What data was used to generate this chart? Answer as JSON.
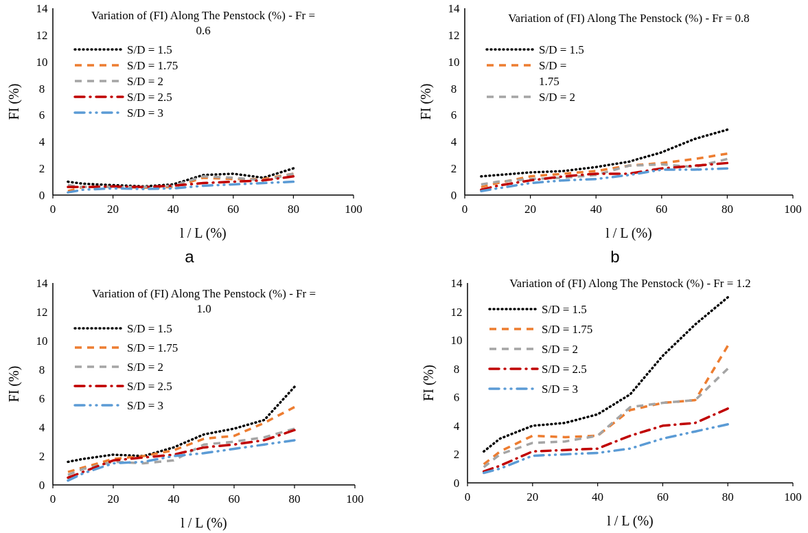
{
  "chart_data": [
    {
      "type": "line",
      "title": "Variation of (FI) Along The Penstock (%) - Fr = 0.6",
      "xlabel": "l / L (%)",
      "ylabel": "FI (%)",
      "x": [
        5,
        10,
        20,
        30,
        40,
        50,
        60,
        70,
        80
      ],
      "xlim": [
        0,
        100
      ],
      "xticks": [
        0,
        20,
        40,
        60,
        80,
        100
      ],
      "ylim": [
        0,
        14
      ],
      "yticks": [
        0,
        2,
        4,
        6,
        8,
        10,
        12,
        14
      ],
      "grid": false,
      "legend": "top left",
      "annotations": [
        "a"
      ],
      "series": [
        {
          "name": "S/D = 1.5",
          "color": "#000000",
          "line_style": "dotted",
          "values": [
            1.0,
            0.85,
            0.75,
            0.65,
            0.8,
            1.5,
            1.6,
            1.3,
            2.0
          ]
        },
        {
          "name": "S/D = 1.75",
          "color": "#ed7d31",
          "line_style": "dashed",
          "values": [
            0.3,
            0.6,
            0.6,
            0.55,
            0.6,
            1.3,
            1.2,
            1.2,
            1.6
          ]
        },
        {
          "name": "S/D = 2",
          "color": "#a5a5a5",
          "line_style": "dashed",
          "values": [
            0.75,
            0.6,
            0.6,
            0.6,
            0.7,
            1.4,
            1.3,
            1.1,
            1.6
          ]
        },
        {
          "name": "S/D = 2.5",
          "color": "#c00000",
          "line_style": "dashdot",
          "values": [
            0.6,
            0.6,
            0.65,
            0.6,
            0.7,
            0.9,
            1.0,
            1.1,
            1.4
          ]
        },
        {
          "name": "S/D = 3",
          "color": "#5b9bd5",
          "line_style": "dashdotdot",
          "values": [
            0.2,
            0.4,
            0.5,
            0.45,
            0.5,
            0.7,
            0.8,
            0.9,
            1.0
          ]
        }
      ]
    },
    {
      "type": "line",
      "title": "Variation of (FI) Along The Penstock (%) - Fr = 0.8",
      "xlabel": "l / L (%)",
      "ylabel": "FI (%)",
      "x": [
        5,
        10,
        20,
        30,
        40,
        50,
        60,
        70,
        80
      ],
      "xlim": [
        0,
        100
      ],
      "xticks": [
        0,
        20,
        40,
        60,
        80,
        100
      ],
      "ylim": [
        0,
        14
      ],
      "yticks": [
        0,
        2,
        4,
        6,
        8,
        10,
        12,
        14
      ],
      "grid": false,
      "legend": "top left",
      "annotations": [
        "b"
      ],
      "series": [
        {
          "name": "S/D = 1.5",
          "color": "#000000",
          "line_style": "dotted",
          "values": [
            1.4,
            1.5,
            1.7,
            1.8,
            2.1,
            2.5,
            3.2,
            4.2,
            4.9
          ]
        },
        {
          "name": "S/D = 1.75",
          "color": "#ed7d31",
          "line_style": "dashed",
          "values": [
            0.6,
            0.9,
            1.4,
            1.6,
            1.8,
            2.2,
            2.4,
            2.7,
            3.1
          ]
        },
        {
          "name": "S/D = 2",
          "color": "#a5a5a5",
          "line_style": "dashed",
          "values": [
            0.8,
            1.0,
            1.2,
            1.3,
            1.5,
            2.2,
            2.3,
            2.1,
            2.7
          ]
        },
        {
          "color": "#c00000",
          "line_style": "dashdot",
          "values": [
            0.4,
            0.7,
            1.1,
            1.4,
            1.6,
            1.6,
            2.0,
            2.2,
            2.4
          ]
        },
        {
          "color": "#5b9bd5",
          "line_style": "dashdotdot",
          "values": [
            0.3,
            0.5,
            0.9,
            1.1,
            1.2,
            1.5,
            1.9,
            1.9,
            2.0
          ]
        }
      ]
    },
    {
      "type": "line",
      "title": "Variation of (FI) Along The Penstock (%) - Fr = 1.0",
      "xlabel": "l / L (%)",
      "ylabel": "FI (%)",
      "x": [
        5,
        10,
        20,
        30,
        40,
        50,
        60,
        70,
        80
      ],
      "xlim": [
        0,
        100
      ],
      "xticks": [
        0,
        20,
        40,
        60,
        80,
        100
      ],
      "ylim": [
        0,
        14
      ],
      "yticks": [
        0,
        2,
        4,
        6,
        8,
        10,
        12,
        14
      ],
      "grid": false,
      "legend": "top left",
      "series": [
        {
          "name": "S/D = 1.5",
          "color": "#000000",
          "line_style": "dotted",
          "values": [
            1.6,
            1.8,
            2.1,
            2.0,
            2.6,
            3.5,
            3.9,
            4.5,
            6.8
          ]
        },
        {
          "name": "S/D = 1.75",
          "color": "#ed7d31",
          "line_style": "dashed",
          "values": [
            0.9,
            1.2,
            1.8,
            2.0,
            2.4,
            3.2,
            3.4,
            4.3,
            5.4
          ]
        },
        {
          "name": "S/D = 2",
          "color": "#a5a5a5",
          "line_style": "dashed",
          "values": [
            0.7,
            1.1,
            1.6,
            1.5,
            1.7,
            2.8,
            3.0,
            3.3,
            3.9
          ]
        },
        {
          "name": "S/D = 2.5",
          "color": "#c00000",
          "line_style": "dashdot",
          "values": [
            0.5,
            0.9,
            1.7,
            1.9,
            2.1,
            2.6,
            2.8,
            3.1,
            3.8
          ]
        },
        {
          "name": "S/D = 3",
          "color": "#5b9bd5",
          "line_style": "dashdotdot",
          "values": [
            0.3,
            0.8,
            1.5,
            1.6,
            2.0,
            2.2,
            2.5,
            2.8,
            3.1
          ]
        }
      ]
    },
    {
      "type": "line",
      "title": "Variation of (FI) Along The Penstock (%) - Fr = 1.2",
      "xlabel": "l / L (%)",
      "ylabel": "FI (%)",
      "x": [
        5,
        10,
        20,
        30,
        40,
        50,
        60,
        70,
        80
      ],
      "xlim": [
        0,
        100
      ],
      "xticks": [
        0,
        20,
        40,
        60,
        80,
        100
      ],
      "ylim": [
        0,
        14
      ],
      "yticks": [
        0,
        2,
        4,
        6,
        8,
        10,
        12,
        14
      ],
      "grid": false,
      "legend": "top left",
      "series": [
        {
          "name": "S/D = 1.5",
          "color": "#000000",
          "line_style": "dotted",
          "values": [
            2.2,
            3.1,
            4.0,
            4.2,
            4.8,
            6.2,
            8.9,
            11.1,
            13.0
          ]
        },
        {
          "name": "S/D = 1.75",
          "color": "#ed7d31",
          "line_style": "dashed",
          "values": [
            1.3,
            2.2,
            3.3,
            3.2,
            3.3,
            5.1,
            5.6,
            5.8,
            9.6
          ]
        },
        {
          "name": "S/D = 2",
          "color": "#a5a5a5",
          "line_style": "dashed",
          "values": [
            1.1,
            2.0,
            2.8,
            2.9,
            3.3,
            5.3,
            5.6,
            5.8,
            8.0
          ]
        },
        {
          "name": "S/D = 2.5",
          "color": "#c00000",
          "line_style": "dashdot",
          "values": [
            0.8,
            1.2,
            2.2,
            2.3,
            2.4,
            3.3,
            4.0,
            4.2,
            5.2
          ]
        },
        {
          "name": "S/D = 3",
          "color": "#5b9bd5",
          "line_style": "dashdotdot",
          "values": [
            0.7,
            1.0,
            1.9,
            2.0,
            2.1,
            2.4,
            3.1,
            3.6,
            4.1
          ]
        }
      ]
    }
  ]
}
